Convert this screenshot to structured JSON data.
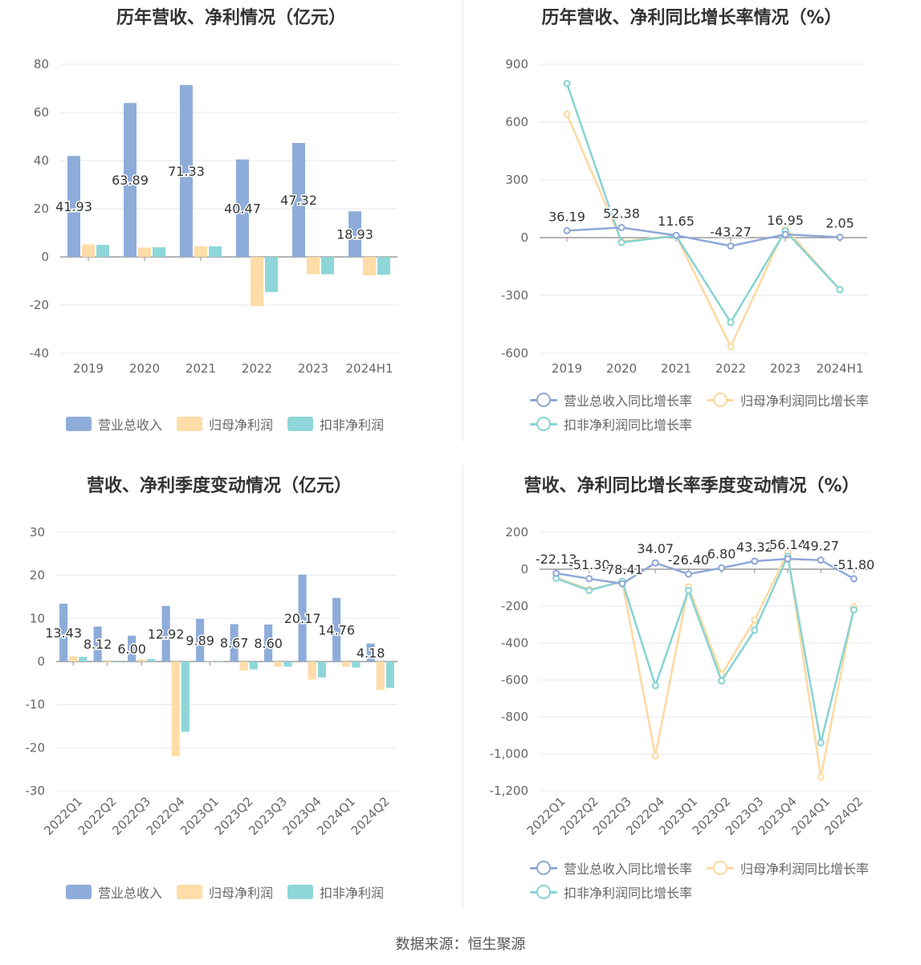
{
  "source": "数据来源：恒生聚源",
  "colors": {
    "revenue": "#8EACDA",
    "netprofit": "#FFDCA8",
    "deducted": "#8ED6D8",
    "revenue_line": "#8EA7D8",
    "netprofit_line": "#FDD9A0",
    "deducted_line": "#86D3D3"
  },
  "chart_data": [
    {
      "type": "bar",
      "title": "历年营收、净利情况（亿元）",
      "categories": [
        "2019",
        "2020",
        "2021",
        "2022",
        "2023",
        "2024H1"
      ],
      "ylim": [
        -40,
        80
      ],
      "yticks": [
        80,
        60,
        40,
        20,
        0,
        -20,
        -40
      ],
      "grid": true,
      "legend": "bottom",
      "series": [
        {
          "name": "营业总收入",
          "color_key": "revenue",
          "values": [
            41.93,
            63.89,
            71.33,
            40.47,
            47.32,
            18.93
          ],
          "labels": [
            "41.93",
            "63.89",
            "71.33",
            "40.47",
            "47.32",
            "18.93"
          ]
        },
        {
          "name": "归母净利润",
          "color_key": "netprofit",
          "values": [
            5.2,
            3.9,
            4.4,
            -20.5,
            -7.2,
            -7.7
          ]
        },
        {
          "name": "扣非净利润",
          "color_key": "deducted",
          "values": [
            5.0,
            4.0,
            4.4,
            -14.6,
            -7.2,
            -7.4
          ]
        }
      ]
    },
    {
      "type": "line",
      "title": "历年营收、净利同比增长率情况（%）",
      "categories": [
        "2019",
        "2020",
        "2021",
        "2022",
        "2023",
        "2024H1"
      ],
      "ylim": [
        -600,
        900
      ],
      "yticks": [
        900,
        600,
        300,
        0,
        -300,
        -600
      ],
      "grid": true,
      "legend": "bottom",
      "series": [
        {
          "name": "营业总收入同比增长率",
          "color_key": "revenue_line",
          "values": [
            36.19,
            52.38,
            11.65,
            -43.27,
            16.95,
            2.05
          ],
          "labels": [
            "36.19",
            "52.38",
            "11.65",
            "-43.27",
            "16.95",
            "2.05"
          ]
        },
        {
          "name": "归母净利润同比增长率",
          "color_key": "netprofit_line",
          "values": [
            640,
            -20,
            10,
            -565,
            50,
            -270
          ]
        },
        {
          "name": "扣非净利润同比增长率",
          "color_key": "deducted_line",
          "values": [
            800,
            -25,
            10,
            -440,
            35,
            -270
          ]
        }
      ]
    },
    {
      "type": "bar",
      "title": "营收、净利季度变动情况（亿元）",
      "categories": [
        "2022Q1",
        "2022Q2",
        "2022Q3",
        "2022Q4",
        "2023Q1",
        "2023Q2",
        "2023Q3",
        "2023Q4",
        "2024Q1",
        "2024Q2"
      ],
      "ylim": [
        -30,
        30
      ],
      "yticks": [
        30,
        20,
        10,
        0,
        -10,
        -20,
        -30
      ],
      "grid": true,
      "legend": "bottom",
      "series": [
        {
          "name": "营业总收入",
          "color_key": "revenue",
          "values": [
            13.43,
            8.12,
            6.0,
            12.92,
            9.89,
            8.67,
            8.6,
            20.17,
            14.76,
            4.18
          ],
          "labels": [
            "13.43",
            "8.12",
            "6.00",
            "12.92",
            "9.89",
            "8.67",
            "8.60",
            "20.17",
            "14.76",
            "4.18"
          ]
        },
        {
          "name": "归母净利润",
          "color_key": "netprofit",
          "values": [
            1.2,
            -0.2,
            0.5,
            -22.0,
            0.05,
            -2.1,
            -1.2,
            -4.2,
            -1.2,
            -6.6
          ]
        },
        {
          "name": "扣非净利润",
          "color_key": "deducted",
          "values": [
            1.1,
            -0.2,
            0.6,
            -16.3,
            0.05,
            -1.8,
            -1.2,
            -3.7,
            -1.4,
            -6.1
          ]
        }
      ]
    },
    {
      "type": "line",
      "title": "营收、净利同比增长率季度变动情况（%）",
      "categories": [
        "2022Q1",
        "2022Q2",
        "2022Q3",
        "2022Q4",
        "2023Q1",
        "2023Q2",
        "2023Q3",
        "2023Q4",
        "2024Q1",
        "2024Q2"
      ],
      "ylim": [
        -1200,
        200
      ],
      "yticks": [
        200,
        0,
        -200,
        -400,
        -600,
        -800,
        -1000,
        -1200
      ],
      "yticklabels": [
        "200",
        "0",
        "-200",
        "-400",
        "-600",
        "-800",
        "-1,000",
        "-1,200"
      ],
      "grid": true,
      "legend": "bottom",
      "series": [
        {
          "name": "营业总收入同比增长率",
          "color_key": "revenue_line",
          "values": [
            -22.13,
            -51.3,
            -78.41,
            34.07,
            -26.4,
            6.8,
            43.32,
            56.14,
            49.27,
            -51.8
          ],
          "labels": [
            "-22.13",
            "-51.30",
            "-78.41",
            "34.07",
            "-26.40",
            "6.80",
            "43.32",
            "56.14",
            "49.27",
            "-51.80"
          ]
        },
        {
          "name": "归母净利润同比增长率",
          "color_key": "netprofit_line",
          "values": [
            -45,
            -110,
            -70,
            -1010,
            -95,
            -570,
            -275,
            90,
            -1125,
            -205
          ]
        },
        {
          "name": "扣非净利润同比增长率",
          "color_key": "deducted_line",
          "values": [
            -50,
            -115,
            -65,
            -630,
            -115,
            -605,
            -330,
            70,
            -940,
            -220
          ]
        }
      ]
    }
  ]
}
